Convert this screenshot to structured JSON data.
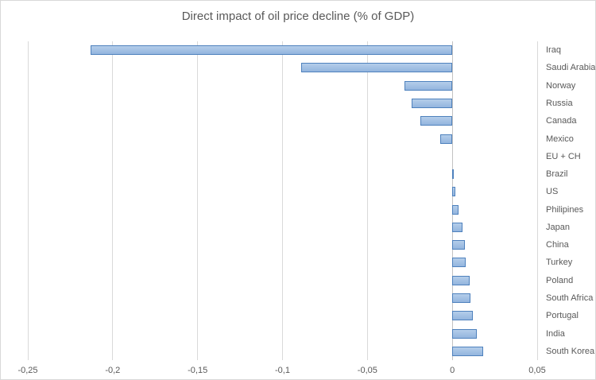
{
  "chart_data": {
    "type": "bar",
    "orientation": "horizontal",
    "title": "Direct impact of oil price decline (% of GDP)",
    "categories": [
      "Iraq",
      "Saudi Arabia",
      "Norway",
      "Russia",
      "Canada",
      "Mexico",
      "EU + CH",
      "Brazil",
      "US",
      "Philipines",
      "Japan",
      "China",
      "Turkey",
      "Poland",
      "South Africa",
      "Portugal",
      "India",
      "South Korea"
    ],
    "values": [
      -0.213,
      -0.089,
      -0.028,
      -0.024,
      -0.019,
      -0.007,
      0,
      0.001,
      0.002,
      0.0035,
      0.006,
      0.0075,
      0.008,
      0.01,
      0.0105,
      0.012,
      0.0145,
      0.018
    ],
    "xlabel": "",
    "ylabel": "",
    "xlim": [
      -0.25,
      0.05
    ],
    "x_ticks": [
      -0.25,
      -0.2,
      -0.15,
      -0.1,
      -0.05,
      0,
      0.05
    ],
    "x_tick_labels": [
      "-0,25",
      "-0,2",
      "-0,15",
      "-0,1",
      "-0,05",
      "0",
      "0,05"
    ],
    "grid": "vertical-only",
    "legend": "none",
    "colors": {
      "bar_fill_top": "#b4cdea",
      "bar_fill_bottom": "#93b5de",
      "bar_border": "#4e81bd",
      "gridline": "#d9d9d9",
      "zero_line": "#c3c3c3",
      "text": "#595959",
      "frame_border": "#d9d9d9"
    }
  }
}
